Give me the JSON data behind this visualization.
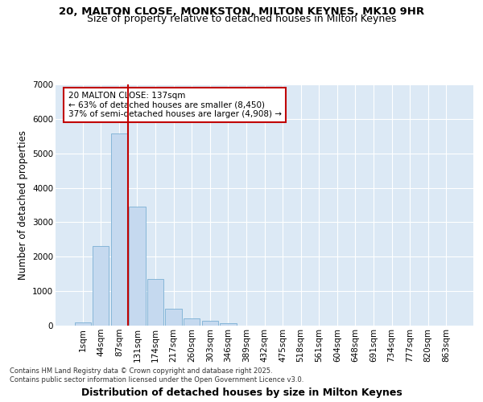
{
  "title_line1": "20, MALTON CLOSE, MONKSTON, MILTON KEYNES, MK10 9HR",
  "title_line2": "Size of property relative to detached houses in Milton Keynes",
  "xlabel": "Distribution of detached houses by size in Milton Keynes",
  "ylabel": "Number of detached properties",
  "bar_labels": [
    "1sqm",
    "44sqm",
    "87sqm",
    "131sqm",
    "174sqm",
    "217sqm",
    "260sqm",
    "303sqm",
    "346sqm",
    "389sqm",
    "432sqm",
    "475sqm",
    "518sqm",
    "561sqm",
    "604sqm",
    "648sqm",
    "691sqm",
    "734sqm",
    "777sqm",
    "820sqm",
    "863sqm"
  ],
  "bar_values": [
    90,
    2300,
    5580,
    3450,
    1360,
    480,
    200,
    150,
    80,
    0,
    0,
    0,
    0,
    0,
    0,
    0,
    0,
    0,
    0,
    0,
    0
  ],
  "bar_color": "#c5d9ef",
  "bar_edgecolor": "#7bafd4",
  "vline_color": "#c00000",
  "annotation_text": "20 MALTON CLOSE: 137sqm\n← 63% of detached houses are smaller (8,450)\n37% of semi-detached houses are larger (4,908) →",
  "annotation_box_color": "#c00000",
  "ylim": [
    0,
    7000
  ],
  "yticks": [
    0,
    1000,
    2000,
    3000,
    4000,
    5000,
    6000,
    7000
  ],
  "background_color": "#dce9f5",
  "grid_color": "#ffffff",
  "footer_text": "Contains HM Land Registry data © Crown copyright and database right 2025.\nContains public sector information licensed under the Open Government Licence v3.0.",
  "title1_fontsize": 9.5,
  "title2_fontsize": 9.0,
  "xlabel_fontsize": 9.0,
  "ylabel_fontsize": 8.5,
  "tick_fontsize": 7.5,
  "annotation_fontsize": 7.5,
  "footer_fontsize": 6.0
}
